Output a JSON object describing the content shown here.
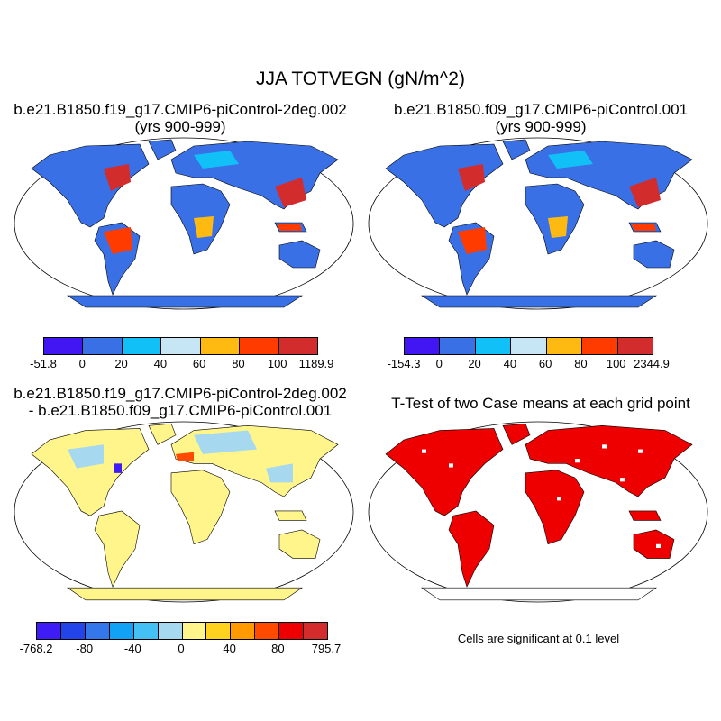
{
  "title": "JJA TOTVEGN (gN/m^2)",
  "panels": [
    {
      "title1": "b.e21.B1850.f19_g17.CMIP6-piControl-2deg.002",
      "title2": "(yrs 900-999)",
      "land_color": "#3a70e6"
    },
    {
      "title1": "b.e21.B1850.f09_g17.CMIP6-piControl.001",
      "title2": "(yrs 900-999)",
      "land_color": "#3a70e6"
    },
    {
      "title1": "b.e21.B1850.f19_g17.CMIP6-piControl-2deg.002",
      "title2": "- b.e21.B1850.f09_g17.CMIP6-piControl.001",
      "land_color": "#fff58a"
    },
    {
      "title1": "T-Test of two Case means at each grid point",
      "title2": "",
      "land_color": "#ee0000"
    }
  ],
  "colorbars": [
    {
      "colors": [
        "#4216f2",
        "#3a70e6",
        "#12c0f8",
        "#c6e6f6",
        "#ffba12",
        "#ff3b00",
        "#d22c2c"
      ],
      "labels": [
        "-51.8",
        "0",
        "20",
        "40",
        "60",
        "80",
        "100",
        "1189.9"
      ]
    },
    {
      "colors": [
        "#4216f2",
        "#3a70e6",
        "#12c0f8",
        "#c6e6f6",
        "#ffba12",
        "#ff3b00",
        "#d22c2c"
      ],
      "labels": [
        "-154.3",
        "0",
        "20",
        "40",
        "60",
        "80",
        "100",
        "2344.9"
      ]
    },
    {
      "colors": [
        "#3f1bf5",
        "#2244e8",
        "#3477eb",
        "#12a2f5",
        "#45c0f5",
        "#a6d9f0",
        "#fff58a",
        "#ffd21f",
        "#ff9a00",
        "#ff4a00",
        "#ee0000",
        "#d42c2c"
      ],
      "labels": [
        "-768.2",
        "-80",
        "-40",
        "0",
        "40",
        "80",
        "795.7"
      ]
    }
  ],
  "note": "Cells are significant at 0.1 level"
}
